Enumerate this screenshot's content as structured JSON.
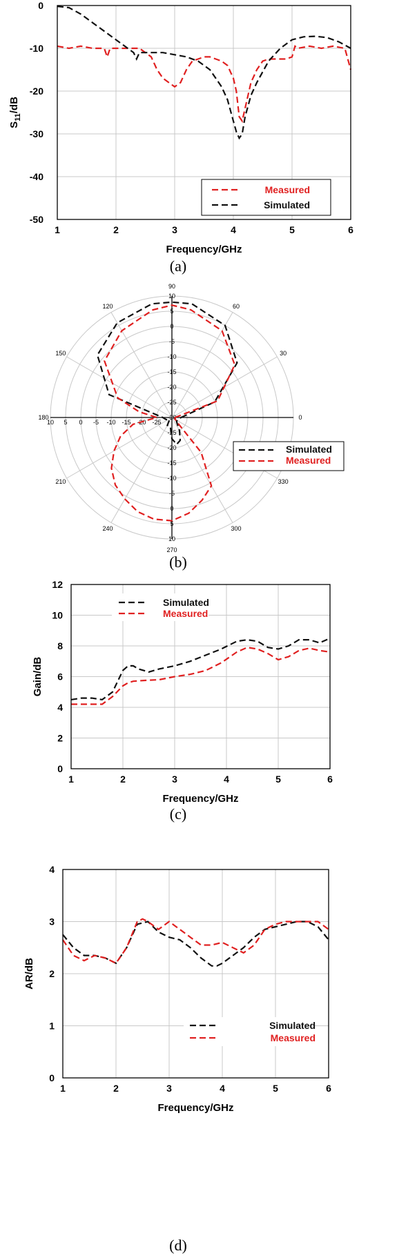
{
  "chart_data": [
    {
      "panel": "a",
      "type": "line",
      "caption": "(a)",
      "xlabel": "Frequency/GHz",
      "ylabel_main": "S",
      "ylabel_sub": "11",
      "ylabel_tail": "/dB",
      "xlim": [
        1,
        6
      ],
      "ylim": [
        -50,
        0
      ],
      "xticks": [
        "1",
        "2",
        "3",
        "4",
        "5",
        "6"
      ],
      "yticks": [
        "0",
        "-10",
        "-20",
        "-30",
        "-40",
        "-50"
      ],
      "grid": true,
      "legend_position": "bottom-right",
      "series": [
        {
          "name": "Measured",
          "color": "#e02020",
          "x": [
            1.0,
            1.2,
            1.4,
            1.6,
            1.8,
            1.85,
            1.9,
            2.0,
            2.2,
            2.4,
            2.5,
            2.6,
            2.7,
            2.8,
            2.9,
            3.0,
            3.1,
            3.2,
            3.3,
            3.4,
            3.5,
            3.6,
            3.7,
            3.8,
            3.9,
            4.0,
            4.05,
            4.1,
            4.15,
            4.2,
            4.3,
            4.4,
            4.5,
            4.6,
            4.7,
            4.8,
            4.9,
            5.0,
            5.05,
            5.1,
            5.3,
            5.5,
            5.7,
            5.9,
            6.0
          ],
          "y": [
            -9.5,
            -10,
            -9.5,
            -10,
            -10,
            -12,
            -10,
            -10,
            -10,
            -10,
            -11,
            -12,
            -15,
            -17,
            -18,
            -19,
            -18,
            -15,
            -13,
            -12.5,
            -12,
            -12,
            -12.5,
            -13,
            -14,
            -17,
            -20,
            -26,
            -27,
            -24,
            -18,
            -15,
            -13,
            -12.5,
            -12.5,
            -12.5,
            -12.5,
            -12,
            -9.5,
            -10,
            -9.5,
            -10,
            -9.5,
            -10,
            -15
          ]
        },
        {
          "name": "Simulated",
          "color": "#111111",
          "x": [
            1.0,
            1.2,
            1.4,
            1.6,
            1.8,
            2.0,
            2.2,
            2.3,
            2.35,
            2.4,
            2.6,
            2.8,
            3.0,
            3.2,
            3.4,
            3.6,
            3.8,
            3.9,
            4.0,
            4.05,
            4.1,
            4.15,
            4.2,
            4.3,
            4.4,
            4.6,
            4.8,
            5.0,
            5.2,
            5.4,
            5.6,
            5.8,
            6.0
          ],
          "y": [
            -0.2,
            -0.5,
            -2,
            -4,
            -6,
            -8,
            -10,
            -11,
            -12.5,
            -11,
            -11,
            -11,
            -11.5,
            -12,
            -13,
            -15,
            -19,
            -22,
            -27,
            -29.5,
            -31,
            -30,
            -26,
            -21,
            -18,
            -13,
            -10,
            -8,
            -7.3,
            -7.2,
            -7.5,
            -8.5,
            -10
          ]
        }
      ]
    },
    {
      "panel": "b",
      "type": "polar",
      "caption": "(b)",
      "angle_labels": [
        "90",
        "60",
        "30",
        "0",
        "330",
        "300",
        "270",
        "240",
        "210",
        "180",
        "150",
        "120"
      ],
      "radial_labels_top": [
        "10",
        "5",
        "0",
        "-5",
        "-10",
        "-15",
        "-20",
        "-25",
        "-30"
      ],
      "radial_labels_bottom": [
        "-25",
        "-20",
        "-15",
        "-10",
        "-5",
        "0",
        "5",
        "10"
      ],
      "radial_labels_left": [
        "10",
        "5",
        "0",
        "-5",
        "-10",
        "-15",
        "-20",
        "-25"
      ],
      "legend_position": "right",
      "series": [
        {
          "name": "Simulated",
          "color": "#111111",
          "theta": [
            0,
            20,
            40,
            60,
            80,
            90,
            100,
            120,
            140,
            160,
            180,
            200,
            220,
            240,
            260,
            270,
            280,
            290,
            300,
            320,
            340,
            360
          ],
          "r": [
            -27,
            -15,
            -2,
            5,
            8,
            8,
            8,
            6,
            2,
            -8,
            -27,
            -28,
            -29,
            -27,
            -27,
            -23,
            -21,
            -22,
            -25,
            -28,
            -28,
            -27
          ]
        },
        {
          "name": "Measured",
          "color": "#e02020",
          "theta": [
            0,
            20,
            40,
            60,
            80,
            90,
            100,
            120,
            140,
            160,
            170,
            180,
            190,
            200,
            210,
            220,
            230,
            240,
            250,
            260,
            270,
            280,
            290,
            300,
            310,
            320,
            340,
            350,
            360
          ],
          "r": [
            -29,
            -14,
            -3,
            3,
            6,
            7,
            6,
            3,
            -1,
            -11,
            -19,
            -25,
            -17,
            -12,
            -8,
            -4,
            -1,
            1,
            3,
            4,
            4,
            2,
            -1,
            -4,
            -15,
            -28,
            -29,
            -29,
            -29
          ]
        }
      ]
    },
    {
      "panel": "c",
      "type": "line",
      "caption": "(c)",
      "xlabel": "Frequency/GHz",
      "ylabel": "Gain/dB",
      "xlim": [
        1,
        6
      ],
      "ylim": [
        0,
        12
      ],
      "xticks": [
        "1",
        "2",
        "3",
        "4",
        "5",
        "6"
      ],
      "yticks": [
        "0",
        "2",
        "4",
        "6",
        "8",
        "10",
        "12"
      ],
      "grid": true,
      "legend_position": "top-left",
      "series": [
        {
          "name": "Simulated",
          "color": "#111111",
          "x": [
            1.0,
            1.2,
            1.4,
            1.6,
            1.8,
            2.0,
            2.1,
            2.2,
            2.3,
            2.5,
            2.7,
            3.0,
            3.3,
            3.6,
            3.9,
            4.2,
            4.4,
            4.6,
            4.8,
            5.0,
            5.2,
            5.4,
            5.6,
            5.8,
            6.0
          ],
          "y": [
            4.5,
            4.6,
            4.6,
            4.5,
            5.0,
            6.4,
            6.7,
            6.7,
            6.5,
            6.3,
            6.5,
            6.7,
            7.0,
            7.4,
            7.8,
            8.3,
            8.4,
            8.3,
            7.9,
            7.8,
            8.0,
            8.4,
            8.4,
            8.2,
            8.5
          ]
        },
        {
          "name": "Measured",
          "color": "#e02020",
          "x": [
            1.0,
            1.2,
            1.4,
            1.6,
            1.8,
            2.0,
            2.1,
            2.2,
            2.4,
            2.7,
            3.0,
            3.3,
            3.6,
            3.9,
            4.2,
            4.4,
            4.6,
            4.8,
            5.0,
            5.2,
            5.4,
            5.6,
            5.8,
            6.0
          ],
          "y": [
            4.2,
            4.2,
            4.2,
            4.2,
            4.7,
            5.4,
            5.6,
            5.7,
            5.75,
            5.8,
            6.0,
            6.15,
            6.4,
            6.9,
            7.6,
            7.9,
            7.8,
            7.5,
            7.1,
            7.3,
            7.7,
            7.85,
            7.7,
            7.6
          ]
        }
      ]
    },
    {
      "panel": "d",
      "type": "line",
      "caption": "(d)",
      "xlabel": "Frequency/GHz",
      "ylabel": "AR/dB",
      "xlim": [
        1,
        6
      ],
      "ylim": [
        0,
        4
      ],
      "xticks": [
        "1",
        "2",
        "3",
        "4",
        "5",
        "6"
      ],
      "yticks": [
        "0",
        "1",
        "2",
        "3",
        "4"
      ],
      "grid": true,
      "legend_position": "bottom-right",
      "series": [
        {
          "name": "Simulated",
          "color": "#111111",
          "x": [
            1.0,
            1.2,
            1.4,
            1.6,
            1.8,
            2.0,
            2.2,
            2.4,
            2.6,
            2.8,
            3.0,
            3.2,
            3.4,
            3.6,
            3.8,
            3.9,
            4.0,
            4.2,
            4.4,
            4.6,
            4.8,
            5.0,
            5.2,
            5.4,
            5.6,
            5.8,
            6.0
          ],
          "y": [
            2.75,
            2.5,
            2.35,
            2.35,
            2.3,
            2.2,
            2.5,
            2.95,
            3.0,
            2.8,
            2.7,
            2.65,
            2.5,
            2.3,
            2.15,
            2.15,
            2.2,
            2.35,
            2.5,
            2.7,
            2.85,
            2.9,
            2.95,
            3.0,
            3.0,
            2.9,
            2.65
          ]
        },
        {
          "name": "Measured",
          "color": "#e02020",
          "x": [
            1.0,
            1.2,
            1.4,
            1.6,
            1.8,
            2.0,
            2.2,
            2.4,
            2.5,
            2.6,
            2.8,
            3.0,
            3.2,
            3.4,
            3.6,
            3.8,
            4.0,
            4.2,
            4.4,
            4.6,
            4.8,
            5.0,
            5.2,
            5.4,
            5.6,
            5.8,
            6.0
          ],
          "y": [
            2.65,
            2.35,
            2.25,
            2.35,
            2.3,
            2.2,
            2.5,
            3.0,
            3.05,
            3.0,
            2.85,
            3.0,
            2.85,
            2.7,
            2.55,
            2.55,
            2.6,
            2.5,
            2.4,
            2.55,
            2.85,
            2.95,
            3.0,
            3.0,
            3.0,
            3.0,
            2.85
          ]
        }
      ]
    }
  ]
}
